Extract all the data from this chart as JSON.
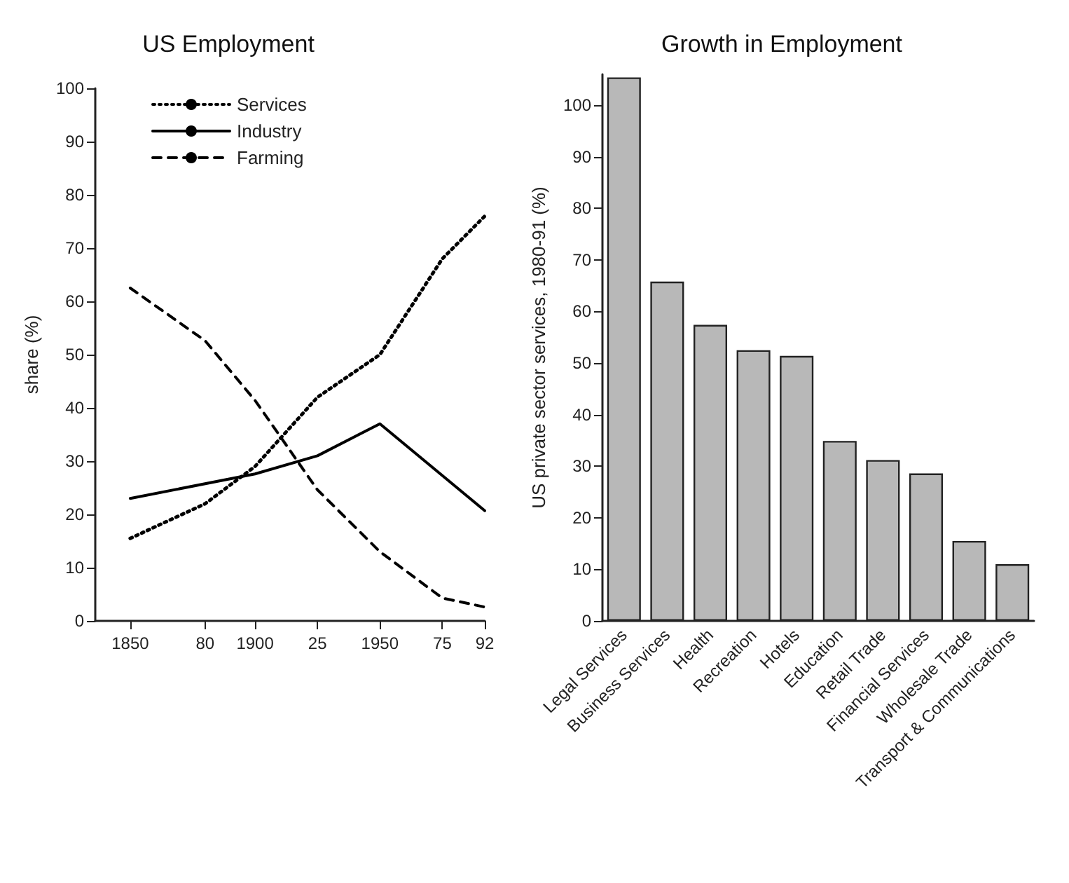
{
  "chart_data": [
    {
      "type": "line",
      "title": "US Employment",
      "ylabel": "share (%)",
      "xlim": [
        1836,
        1992
      ],
      "xticks": [
        {
          "value": 1850,
          "label": "1850"
        },
        {
          "value": 1880,
          "label": "80"
        },
        {
          "value": 1900,
          "label": "1900"
        },
        {
          "value": 1925,
          "label": "25"
        },
        {
          "value": 1950,
          "label": "1950"
        },
        {
          "value": 1975,
          "label": "75"
        },
        {
          "value": 1992,
          "label": "92"
        }
      ],
      "ylim": [
        0,
        100
      ],
      "yticks": [
        0,
        10,
        20,
        30,
        40,
        50,
        60,
        70,
        80,
        90,
        100
      ],
      "legend": "top left",
      "marker": "none",
      "series": [
        {
          "name": "Services",
          "color": "#000000",
          "line_style": "dotted",
          "x": [
            1850,
            1880,
            1900,
            1925,
            1950,
            1975,
            1992
          ],
          "values": [
            15.5,
            22,
            29,
            42,
            50,
            68,
            76
          ]
        },
        {
          "name": "Industry",
          "color": "#000000",
          "line_style": "solid",
          "x": [
            1850,
            1900,
            1925,
            1950,
            1992
          ],
          "values": [
            23,
            27.6,
            31,
            37,
            20.7
          ]
        },
        {
          "name": "Farming",
          "color": "#000000",
          "line_style": "dashed",
          "x": [
            1850,
            1880,
            1900,
            1925,
            1950,
            1975,
            1992
          ],
          "values": [
            62.5,
            52.6,
            41.4,
            24.6,
            13,
            4.3,
            2.6
          ]
        }
      ]
    },
    {
      "type": "bar",
      "title": "Growth in Employment",
      "ylabel": "US private sector services, 1980-91 (%)",
      "categories": [
        "Legal Services",
        "Business Services",
        "Health",
        "Recreation",
        "Hotels",
        "Education",
        "Retail Trade",
        "Financial Services",
        "Wholesale Trade",
        "Transport & Communications"
      ],
      "values": [
        105.4,
        65.8,
        57.4,
        52.5,
        51.4,
        34.9,
        31.2,
        28.6,
        15.5,
        11
      ],
      "color": "#b8b8b8",
      "ylim": [
        0,
        106
      ],
      "yticks": [
        0,
        10,
        20,
        30,
        40,
        50,
        60,
        70,
        80,
        90,
        100
      ]
    }
  ]
}
